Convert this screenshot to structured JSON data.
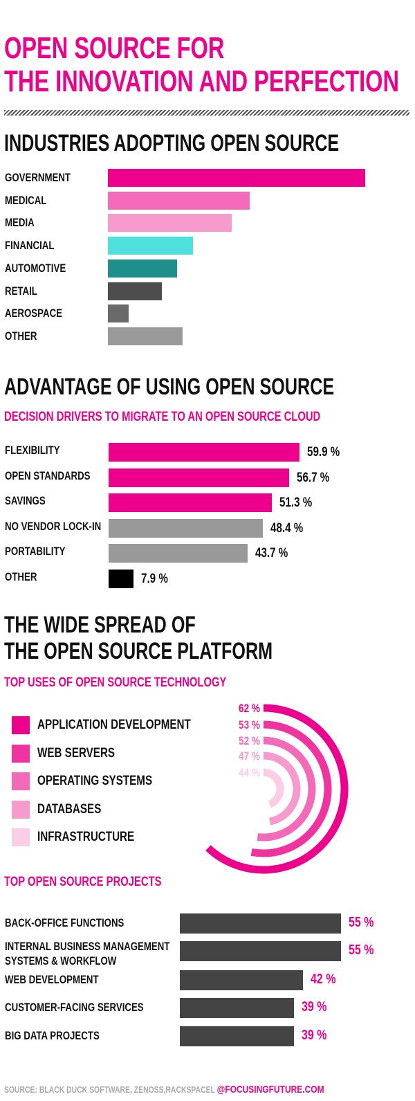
{
  "title_line1": "OPEN SOURCE FOR",
  "title_line2": "THE INNOVATION AND PERFECTION",
  "section1": {
    "title": "INDUSTRIES ADOPTING OPEN SOURCE"
  },
  "section2": {
    "title": "ADVANTAGE OF USING OPEN SOURCE",
    "subtitle": "DECISION DRIVERS TO MIGRATE TO AN OPEN SOURCE CLOUD"
  },
  "section3": {
    "title_line1": "THE WIDE SPREAD OF",
    "title_line2": "THE OPEN SOURCE PLATFORM",
    "subtitle": "TOP USES OF OPEN SOURCE TECHNOLOGY"
  },
  "section4": {
    "subtitle": "TOP OPEN SOURCE PROJECTS"
  },
  "footer": {
    "source": "SOURCE: BLACK DUCK SOFTWARE, ZENOSS,RACKSPACEL",
    "handle": "@FOCUSINGFUTURE.COM"
  },
  "colors": {
    "accent": "#ec008c",
    "dark": "#444444",
    "gray": "#999999"
  },
  "chart_data": [
    {
      "type": "bar",
      "orientation": "horizontal",
      "categories": [
        "GOVERNMENT",
        "MEDICAL",
        "MEDIA",
        "FINANCIAL",
        "AUTOMOTIVE",
        "RETAIL",
        "AEROSPACE",
        "OTHER"
      ],
      "values": [
        100,
        55,
        48,
        33,
        27,
        21,
        8,
        29
      ],
      "colors": [
        "#ec008c",
        "#f46bb9",
        "#f79bcf",
        "#4de0dc",
        "#1e8f8a",
        "#4d4d4d",
        "#6a6a6a",
        "#9a9a9a"
      ],
      "value_labels_shown": false
    },
    {
      "type": "bar",
      "orientation": "horizontal",
      "categories": [
        "FLEXIBILITY",
        "OPEN STANDARDS",
        "SAVINGS",
        "NO VENDOR LOCK-IN",
        "PORTABILITY",
        "OTHER"
      ],
      "values": [
        59.9,
        56.7,
        51.3,
        48.4,
        43.7,
        7.9
      ],
      "labels": [
        "59.9 %",
        "56.7 %",
        "51.3 %",
        "48.4 %",
        "43.7 %",
        "7.9 %"
      ],
      "colors": [
        "#ec008c",
        "#ec008c",
        "#ec008c",
        "#999999",
        "#999999",
        "#000000"
      ]
    },
    {
      "type": "radial-bar",
      "categories": [
        "APPLICATION DEVELOPMENT",
        "WEB SERVERS",
        "OPERATING SYSTEMS",
        "DATABASES",
        "INFRASTRUCTURE"
      ],
      "values": [
        62,
        53,
        52,
        47,
        44
      ],
      "labels": [
        "62 %",
        "53 %",
        "52 %",
        "47 %",
        "44 %"
      ],
      "colors": [
        "#ec008c",
        "#f0339f",
        "#f36bb8",
        "#f79bcf",
        "#fbcde6"
      ]
    },
    {
      "type": "bar",
      "orientation": "horizontal",
      "categories": [
        [
          "BACK-OFFICE FUNCTIONS"
        ],
        [
          "INTERNAL BUSINESS MANAGEMENT",
          "SYSTEMS & WORKFLOW"
        ],
        [
          "WEB DEVELOPMENT"
        ],
        [
          "CUSTOMER-FACING SERVICES"
        ],
        [
          "BIG DATA PROJECTS"
        ]
      ],
      "values": [
        55,
        55,
        42,
        39,
        39
      ],
      "labels": [
        "55 %",
        "55 %",
        "42 %",
        "39 %",
        "39 %"
      ],
      "color": "#444444"
    }
  ]
}
